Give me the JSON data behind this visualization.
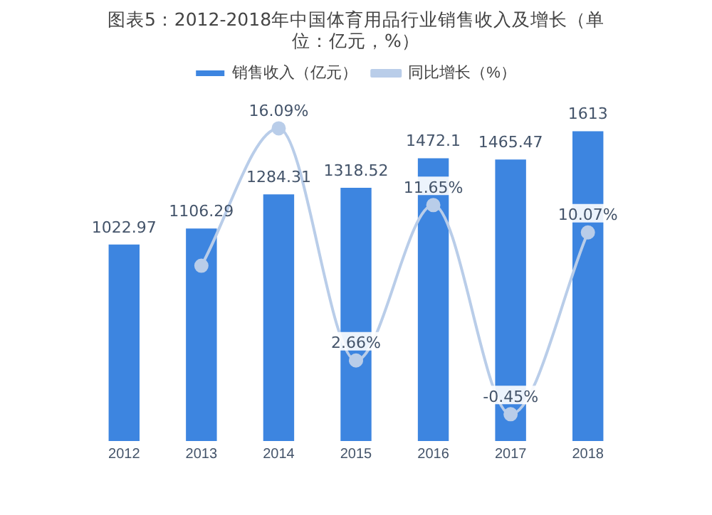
{
  "chart_data": {
    "type": "bar",
    "title": "图表5：2012-2018年中国体育用品行业销售收入及增长（单位：亿元，%）",
    "categories": [
      "2012",
      "2013",
      "2014",
      "2015",
      "2016",
      "2017",
      "2018"
    ],
    "series": [
      {
        "name": "销售收入（亿元）",
        "color": "#3d85e0",
        "values": [
          1022.97,
          1106.29,
          1284.31,
          1318.52,
          1472.1,
          1465.47,
          1613
        ],
        "value_labels": [
          "1022.97",
          "1106.29",
          "1284.31",
          "1318.52",
          "1472.1",
          "1465.47",
          "1613"
        ]
      },
      {
        "name": "同比增长（%）",
        "type": "line",
        "axis": "y2",
        "color": "#b9cde9",
        "marker": "circle",
        "values": [
          null,
          8.14,
          16.09,
          2.66,
          11.65,
          -0.45,
          10.07
        ],
        "value_labels": [
          null,
          null,
          "16.09%",
          "2.66%",
          "11.65%",
          "-0.45%",
          "10.07%"
        ]
      }
    ],
    "tick_labels": "x",
    "legend": "top",
    "grid": false
  }
}
